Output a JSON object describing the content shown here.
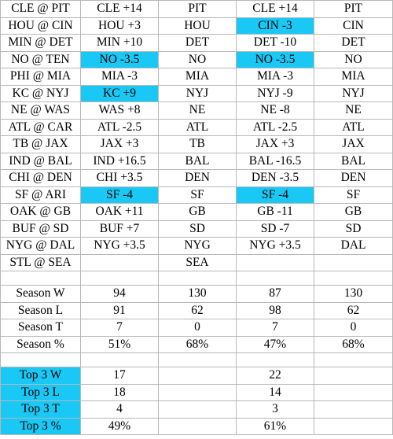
{
  "highlight_color": "#1ac8f5",
  "games": [
    {
      "matchup": "CLE @ PIT",
      "pick1": "CLE +14",
      "pick1_hl": false,
      "win1": "PIT",
      "pick2": "CLE +14",
      "pick2_hl": false,
      "win2": "PIT"
    },
    {
      "matchup": "HOU @ CIN",
      "pick1": "HOU +3",
      "pick1_hl": false,
      "win1": "HOU",
      "pick2": "CIN -3",
      "pick2_hl": true,
      "win2": "CIN"
    },
    {
      "matchup": "MIN @ DET",
      "pick1": "MIN +10",
      "pick1_hl": false,
      "win1": "DET",
      "pick2": "DET -10",
      "pick2_hl": false,
      "win2": "DET"
    },
    {
      "matchup": "NO @ TEN",
      "pick1": "NO -3.5",
      "pick1_hl": true,
      "win1": "NO",
      "pick2": "NO -3.5",
      "pick2_hl": true,
      "win2": "NO"
    },
    {
      "matchup": "PHI @ MIA",
      "pick1": "MIA -3",
      "pick1_hl": false,
      "win1": "MIA",
      "pick2": "MIA -3",
      "pick2_hl": false,
      "win2": "MIA"
    },
    {
      "matchup": "KC @ NYJ",
      "pick1": "KC +9",
      "pick1_hl": true,
      "win1": "NYJ",
      "pick2": "NYJ -9",
      "pick2_hl": false,
      "win2": "NYJ"
    },
    {
      "matchup": "NE @ WAS",
      "pick1": "WAS +8",
      "pick1_hl": false,
      "win1": "NE",
      "pick2": "NE -8",
      "pick2_hl": false,
      "win2": "NE"
    },
    {
      "matchup": "ATL @ CAR",
      "pick1": "ATL -2.5",
      "pick1_hl": false,
      "win1": "ATL",
      "pick2": "ATL -2.5",
      "pick2_hl": false,
      "win2": "ATL"
    },
    {
      "matchup": "TB @ JAX",
      "pick1": "JAX +3",
      "pick1_hl": false,
      "win1": "TB",
      "pick2": "JAX +3",
      "pick2_hl": false,
      "win2": "JAX"
    },
    {
      "matchup": "IND @ BAL",
      "pick1": "IND +16.5",
      "pick1_hl": false,
      "win1": "BAL",
      "pick2": "BAL -16.5",
      "pick2_hl": false,
      "win2": "BAL"
    },
    {
      "matchup": "CHI @ DEN",
      "pick1": "CHI +3.5",
      "pick1_hl": false,
      "win1": "DEN",
      "pick2": "DEN -3.5",
      "pick2_hl": false,
      "win2": "DEN"
    },
    {
      "matchup": "SF @ ARI",
      "pick1": "SF -4",
      "pick1_hl": true,
      "win1": "SF",
      "pick2": "SF -4",
      "pick2_hl": true,
      "win2": "SF"
    },
    {
      "matchup": "OAK @ GB",
      "pick1": "OAK +11",
      "pick1_hl": false,
      "win1": "GB",
      "pick2": "GB -11",
      "pick2_hl": false,
      "win2": "GB"
    },
    {
      "matchup": "BUF @ SD",
      "pick1": "BUF +7",
      "pick1_hl": false,
      "win1": "SD",
      "pick2": "SD -7",
      "pick2_hl": false,
      "win2": "SD"
    },
    {
      "matchup": "NYG @ DAL",
      "pick1": "NYG +3.5",
      "pick1_hl": false,
      "win1": "NYG",
      "pick2": "NYG +3.5",
      "pick2_hl": false,
      "win2": "DAL"
    },
    {
      "matchup": "STL @ SEA",
      "pick1": "",
      "pick1_hl": false,
      "win1": "SEA",
      "pick2": "",
      "pick2_hl": false,
      "win2": ""
    }
  ],
  "season": [
    {
      "label": "Season W",
      "v1": "94",
      "v2": "130",
      "v3": "87",
      "v4": "130"
    },
    {
      "label": "Season L",
      "v1": "91",
      "v2": "62",
      "v3": "98",
      "v4": "62"
    },
    {
      "label": "Season T",
      "v1": "7",
      "v2": "0",
      "v3": "7",
      "v4": "0"
    },
    {
      "label": "Season %",
      "v1": "51%",
      "v2": "68%",
      "v3": "47%",
      "v4": "68%"
    }
  ],
  "top3": [
    {
      "label": "Top 3 W",
      "v1": "17",
      "v2": "",
      "v3": "22",
      "v4": ""
    },
    {
      "label": "Top 3 L",
      "v1": "18",
      "v2": "",
      "v3": "14",
      "v4": ""
    },
    {
      "label": "Top 3 T",
      "v1": "4",
      "v2": "",
      "v3": "3",
      "v4": ""
    },
    {
      "label": "Top 3 %",
      "v1": "49%",
      "v2": "",
      "v3": "61%",
      "v4": ""
    }
  ]
}
